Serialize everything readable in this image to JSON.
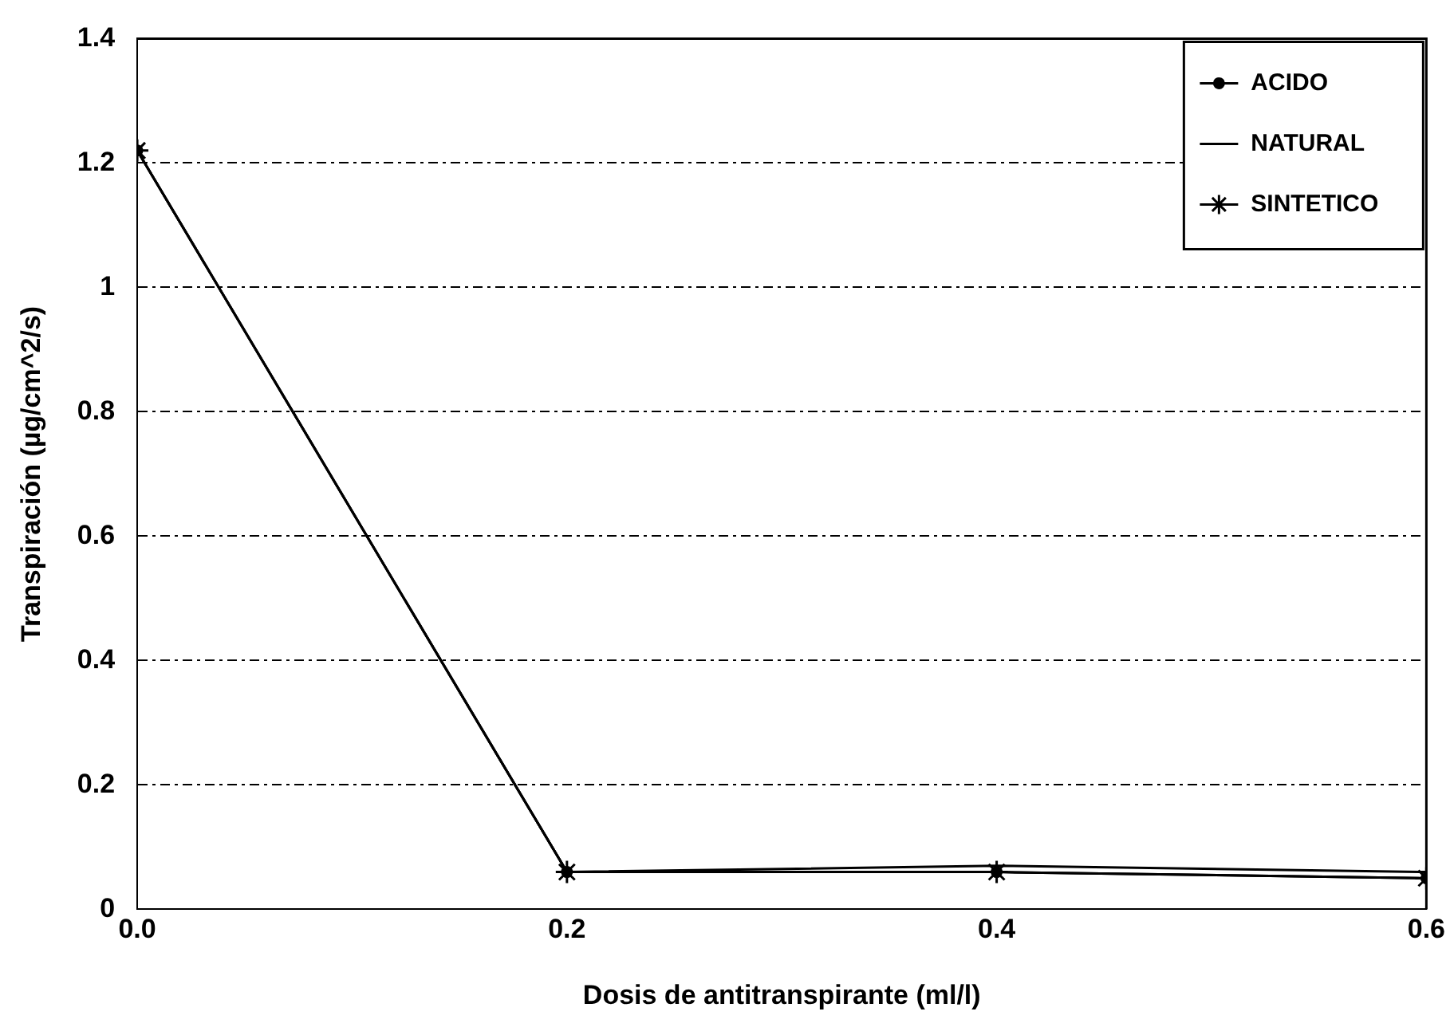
{
  "chart_data": {
    "type": "line",
    "xlabel": "Dosis de antitranspirante (ml/l)",
    "ylabel": "Transpiración (µg/cm^2/s)",
    "x": [
      0,
      0.2,
      0.4,
      0.6
    ],
    "series": [
      {
        "name": "ACIDO",
        "color": "#000000",
        "marker": "circle",
        "values": [
          1.22,
          0.06,
          0.06,
          0.05
        ]
      },
      {
        "name": "NATURAL",
        "color": "#000000",
        "values": [
          1.22,
          0.06,
          0.07,
          0.06
        ]
      },
      {
        "name": "SINTETICO",
        "color": "#000000",
        "marker": "cross",
        "values": [
          1.22,
          0.06,
          0.06,
          0.05
        ]
      }
    ],
    "xlim": [
      0,
      0.6
    ],
    "xticks": [
      {
        "value": 0,
        "label": "0.0"
      },
      {
        "value": 0.2,
        "label": "0.2"
      },
      {
        "value": 0.4,
        "label": "0.4"
      },
      {
        "value": 0.6,
        "label": "0.6"
      }
    ],
    "ylim": [
      0,
      1.4
    ],
    "yticks": [
      0,
      0.2,
      0.4,
      0.6,
      0.8,
      1,
      1.2,
      1.4
    ],
    "grid": "y",
    "legend": "top right",
    "line_style": "solid"
  }
}
